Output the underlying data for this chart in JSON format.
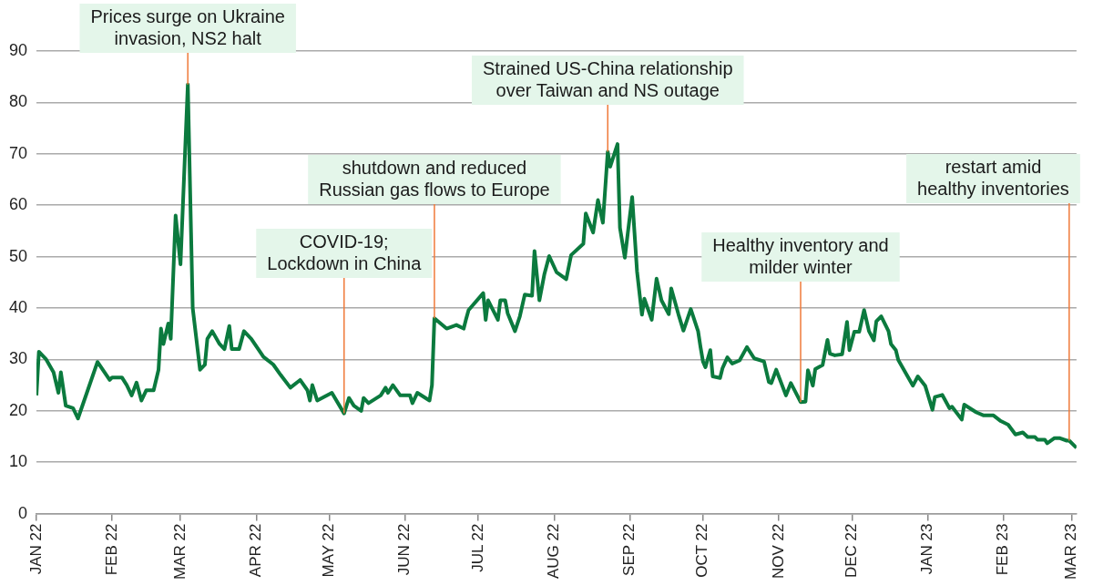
{
  "chart_data": {
    "type": "line",
    "xlim": [
      "2022-01-01",
      "2023-03-03"
    ],
    "ylim": [
      0,
      90
    ],
    "xticks": [
      {
        "value": "2022-01-01",
        "label": "JAN 22"
      },
      {
        "value": "2022-02-01",
        "label": "FEB 22"
      },
      {
        "value": "2022-03-01",
        "label": "MAR 22"
      },
      {
        "value": "2022-04-01",
        "label": "APR 22"
      },
      {
        "value": "2022-05-01",
        "label": "MAY 22"
      },
      {
        "value": "2022-06-01",
        "label": "JUN 22"
      },
      {
        "value": "2022-07-01",
        "label": "JUL 22"
      },
      {
        "value": "2022-08-01",
        "label": "AUG 22"
      },
      {
        "value": "2022-09-01",
        "label": "SEP 22"
      },
      {
        "value": "2022-10-01",
        "label": "OCT 22"
      },
      {
        "value": "2022-11-01",
        "label": "NOV 22"
      },
      {
        "value": "2022-12-01",
        "label": "DEC 22"
      },
      {
        "value": "2023-01-01",
        "label": "JAN 23"
      },
      {
        "value": "2023-02-01",
        "label": "FEB 23"
      },
      {
        "value": "2023-03-01",
        "label": "MAR 23"
      }
    ],
    "yticks": [
      0,
      10,
      20,
      30,
      40,
      50,
      60,
      70,
      80,
      90
    ],
    "grid": "y",
    "legend": false,
    "marker": "none",
    "line_style": "solid",
    "x": [
      "2022-01-01",
      "2022-01-02",
      "2022-01-05",
      "2022-01-08",
      "2022-01-10",
      "2022-01-11",
      "2022-01-13",
      "2022-01-16",
      "2022-01-18",
      "2022-01-22",
      "2022-01-26",
      "2022-01-31",
      "2022-02-01",
      "2022-02-05",
      "2022-02-07",
      "2022-02-09",
      "2022-02-11",
      "2022-02-13",
      "2022-02-15",
      "2022-02-18",
      "2022-02-20",
      "2022-02-21",
      "2022-02-22",
      "2022-02-24",
      "2022-02-25",
      "2022-02-27",
      "2022-03-01",
      "2022-03-04",
      "2022-03-06",
      "2022-03-09",
      "2022-03-11",
      "2022-03-12",
      "2022-03-14",
      "2022-03-17",
      "2022-03-19",
      "2022-03-21",
      "2022-03-22",
      "2022-03-25",
      "2022-03-27",
      "2022-03-30",
      "2022-04-04",
      "2022-04-08",
      "2022-04-11",
      "2022-04-15",
      "2022-04-19",
      "2022-04-22",
      "2022-04-23",
      "2022-04-24",
      "2022-04-26",
      "2022-05-02",
      "2022-05-07",
      "2022-05-09",
      "2022-05-11",
      "2022-05-14",
      "2022-05-15",
      "2022-05-17",
      "2022-05-22",
      "2022-05-24",
      "2022-05-25",
      "2022-05-27",
      "2022-05-30",
      "2022-06-03",
      "2022-06-04",
      "2022-06-06",
      "2022-06-11",
      "2022-06-12",
      "2022-06-13",
      "2022-06-18",
      "2022-06-22",
      "2022-06-25",
      "2022-06-26",
      "2022-06-27",
      "2022-07-03",
      "2022-07-04",
      "2022-07-05",
      "2022-07-09",
      "2022-07-10",
      "2022-07-12",
      "2022-07-13",
      "2022-07-16",
      "2022-07-18",
      "2022-07-20",
      "2022-07-23",
      "2022-07-24",
      "2022-07-26",
      "2022-07-28",
      "2022-07-30",
      "2022-08-02",
      "2022-08-06",
      "2022-08-08",
      "2022-08-13",
      "2022-08-14",
      "2022-08-17",
      "2022-08-19",
      "2022-08-21",
      "2022-08-23",
      "2022-08-24",
      "2022-08-27",
      "2022-08-28",
      "2022-08-30",
      "2022-09-02",
      "2022-09-04",
      "2022-09-06",
      "2022-09-07",
      "2022-09-10",
      "2022-09-12",
      "2022-09-14",
      "2022-09-17",
      "2022-09-18",
      "2022-09-21",
      "2022-09-23",
      "2022-09-26",
      "2022-09-29",
      "2022-09-30",
      "2022-10-01",
      "2022-10-02",
      "2022-10-04",
      "2022-10-05",
      "2022-10-08",
      "2022-10-09",
      "2022-10-11",
      "2022-10-13",
      "2022-10-16",
      "2022-10-19",
      "2022-10-22",
      "2022-10-26",
      "2022-10-28",
      "2022-10-29",
      "2022-10-31",
      "2022-11-04",
      "2022-11-06",
      "2022-11-10",
      "2022-11-12",
      "2022-11-13",
      "2022-11-15",
      "2022-11-16",
      "2022-11-19",
      "2022-11-21",
      "2022-11-22",
      "2022-11-24",
      "2022-11-27",
      "2022-11-29",
      "2022-11-30",
      "2022-12-02",
      "2022-12-04",
      "2022-12-06",
      "2022-12-08",
      "2022-12-10",
      "2022-12-11",
      "2022-12-13",
      "2022-12-16",
      "2022-12-17",
      "2022-12-19",
      "2022-12-20",
      "2022-12-26",
      "2022-12-28",
      "2022-12-31",
      "2023-01-03",
      "2023-01-04",
      "2023-01-07",
      "2023-01-10",
      "2023-01-11",
      "2023-01-15",
      "2023-01-16",
      "2023-01-21",
      "2023-01-24",
      "2023-01-28",
      "2023-01-31",
      "2023-02-03",
      "2023-02-06",
      "2023-02-09",
      "2023-02-11",
      "2023-02-14",
      "2023-02-15",
      "2023-02-18",
      "2023-02-19",
      "2023-02-22",
      "2023-02-24",
      "2023-02-27",
      "2023-02-28",
      "2023-03-03"
    ],
    "series": [
      {
        "color": "#0b7a3e",
        "values": [
          23,
          31.5,
          30,
          27.5,
          23.5,
          27.5,
          21,
          20.5,
          18.5,
          24,
          29.5,
          26,
          26.5,
          26.5,
          25,
          23,
          25.5,
          22,
          24,
          24,
          28,
          36,
          33,
          37,
          34,
          58,
          48.5,
          83.5,
          40,
          28,
          29,
          34,
          35.5,
          33,
          32,
          36.5,
          32,
          32,
          35.5,
          34,
          30.5,
          29,
          27,
          24.5,
          26,
          24,
          22,
          25,
          22,
          23.5,
          19.5,
          22.5,
          21,
          20,
          22.5,
          21.5,
          23,
          24.5,
          23.5,
          25,
          23,
          23,
          21.5,
          23.5,
          22,
          25,
          38,
          36,
          36.7,
          36,
          37.9,
          39.6,
          42.9,
          37.7,
          41.5,
          37.7,
          41.5,
          41.5,
          39,
          35.5,
          38.4,
          42.6,
          42.4,
          51.1,
          41.5,
          46.5,
          50.1,
          47,
          45.6,
          50.3,
          52.5,
          58.4,
          54.7,
          61,
          56.6,
          70.4,
          67.5,
          71.9,
          55.6,
          49.8,
          61.6,
          47.1,
          38.7,
          41.8,
          37.7,
          45.7,
          41.5,
          38.8,
          43.8,
          38.7,
          35.6,
          39.8,
          35.5,
          32.4,
          29.6,
          28.5,
          31.8,
          26.7,
          26.4,
          28.3,
          30.4,
          29.2,
          29.8,
          32.4,
          30.2,
          29.6,
          25.6,
          25.4,
          28,
          23,
          25.4,
          21.7,
          21.8,
          27.9,
          24.9,
          28.1,
          28.9,
          33.8,
          31.1,
          30.8,
          31,
          37.3,
          31.8,
          35.4,
          35.4,
          39.6,
          35.5,
          33.7,
          37.4,
          38.4,
          35.5,
          33,
          31.8,
          29.9,
          24.9,
          26.7,
          24.9,
          20.2,
          22.7,
          23.1,
          20.5,
          20.8,
          18.3,
          21.2,
          19.7,
          19.1,
          19.1,
          18,
          17.3,
          15.4,
          15.8,
          14.9,
          14.9,
          14.4,
          14.4,
          13.7,
          14.7,
          14.7,
          14.2,
          14.2,
          12.8
        ]
      }
    ],
    "annotations": [
      {
        "text": "Prices surge on Ukraine\ninvasion, NS2 halt",
        "x": "2022-03-04",
        "y": 83.5
      },
      {
        "text": "COVID-19;\nLockdown in China",
        "x": "2022-05-07",
        "y": 19.5
      },
      {
        "text": "shutdown and reduced\nRussian gas flows to Europe",
        "x": "2022-06-13",
        "y": 38
      },
      {
        "text": "Strained US-China relationship\nover Taiwan and NS outage",
        "x": "2022-08-23",
        "y": 70.4
      },
      {
        "text": "Healthy inventory and\nmilder winter",
        "x": "2022-11-10",
        "y": 21.7
      },
      {
        "text": "restart amid\nhealthy inventories",
        "x": "2023-02-28",
        "y": 14.2
      }
    ]
  }
}
